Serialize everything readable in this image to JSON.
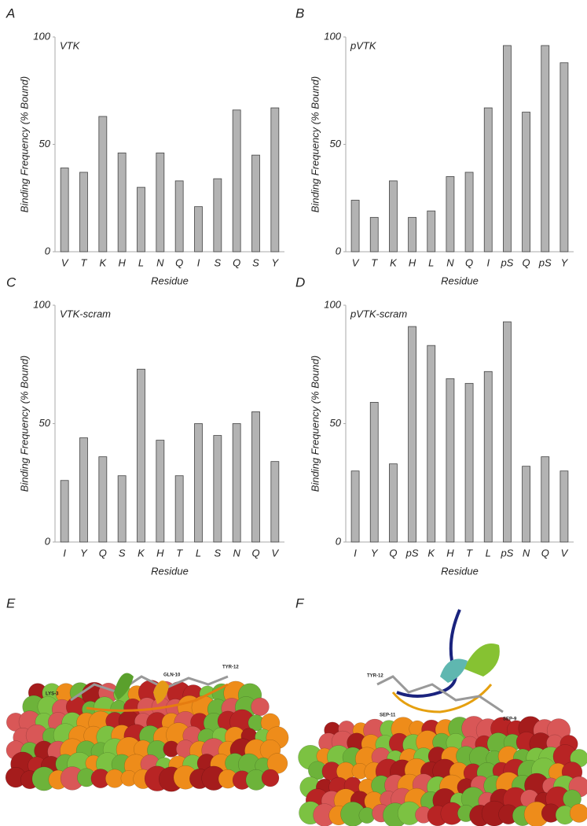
{
  "chart_data": [
    {
      "type": "bar",
      "panel_label": "A",
      "title": "VTK",
      "x_label": "Residue",
      "y_label": "Binding Frequency (% Bound)",
      "categories": [
        "V",
        "T",
        "K",
        "H",
        "L",
        "N",
        "Q",
        "I",
        "S",
        "Q",
        "S",
        "Y"
      ],
      "values": [
        39,
        37,
        63,
        46,
        30,
        46,
        33,
        21,
        34,
        66,
        45,
        67
      ],
      "color": "#b3b3b3",
      "ylim": [
        0,
        100
      ],
      "yticks": [
        0,
        50,
        100
      ]
    },
    {
      "type": "bar",
      "panel_label": "B",
      "title": "pVTK",
      "x_label": "Residue",
      "y_label": "Binding Frequency (% Bound)",
      "categories": [
        "V",
        "T",
        "K",
        "H",
        "L",
        "N",
        "Q",
        "I",
        "pS",
        "Q",
        "pS",
        "Y"
      ],
      "values": [
        24,
        16,
        33,
        16,
        19,
        35,
        37,
        67,
        96,
        65,
        96,
        88
      ],
      "color": "#b3b3b3",
      "ylim": [
        0,
        100
      ],
      "yticks": [
        0,
        50,
        100
      ]
    },
    {
      "type": "bar",
      "panel_label": "C",
      "title": "VTK-scram",
      "x_label": "Residue",
      "y_label": "Binding Frequency (% Bound)",
      "categories": [
        "I",
        "Y",
        "Q",
        "S",
        "K",
        "H",
        "T",
        "L",
        "S",
        "N",
        "Q",
        "V"
      ],
      "values": [
        26,
        44,
        36,
        28,
        73,
        43,
        28,
        50,
        45,
        50,
        55,
        34
      ],
      "color": "#b3b3b3",
      "ylim": [
        0,
        100
      ],
      "yticks": [
        0,
        50,
        100
      ]
    },
    {
      "type": "bar",
      "panel_label": "D",
      "title": "pVTK-scram",
      "x_label": "Residue",
      "y_label": "Binding Frequency (% Bound)",
      "categories": [
        "I",
        "Y",
        "Q",
        "pS",
        "K",
        "H",
        "T",
        "L",
        "pS",
        "N",
        "Q",
        "V"
      ],
      "values": [
        30,
        59,
        33,
        91,
        83,
        69,
        67,
        72,
        93,
        32,
        36,
        30
      ],
      "color": "#b3b3b3",
      "ylim": [
        0,
        100
      ],
      "yticks": [
        0,
        50,
        100
      ]
    }
  ],
  "images": [
    {
      "panel_label": "E",
      "annotations": [
        "LYS-3",
        "GLN-10",
        "TYR-12"
      ]
    },
    {
      "panel_label": "F",
      "annotations": [
        "TYR-12",
        "SEP-11",
        "SEP-9"
      ]
    }
  ]
}
